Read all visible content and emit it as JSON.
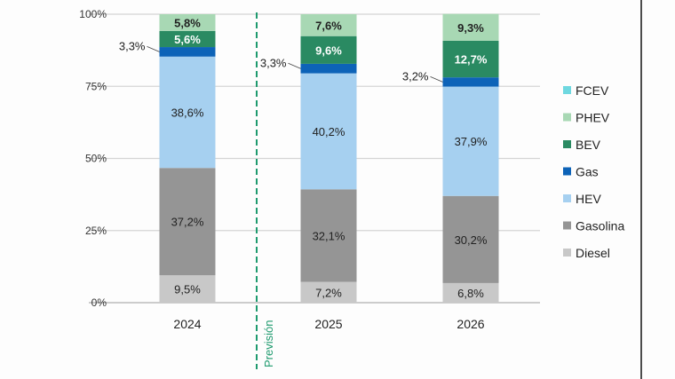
{
  "chart_data": {
    "type": "bar",
    "stacked": true,
    "categories": [
      "2024",
      "2025",
      "2026"
    ],
    "ylim": [
      0,
      100
    ],
    "yticks": [
      "0%",
      "25%",
      "50%",
      "75%",
      "100%"
    ],
    "grid": true,
    "legend_position": "right",
    "annotation": "Previsión",
    "series": [
      {
        "name": "Diesel",
        "color": "#c8c8c8",
        "values": [
          9.5,
          7.2,
          6.8
        ],
        "labels": [
          "9,5%",
          "7,2%",
          "6,8%"
        ]
      },
      {
        "name": "Gasolina",
        "color": "#959595",
        "values": [
          37.2,
          32.1,
          30.2
        ],
        "labels": [
          "37,2%",
          "32,1%",
          "30,2%"
        ]
      },
      {
        "name": "HEV",
        "color": "#a6d0f0",
        "values": [
          38.6,
          40.2,
          37.9
        ],
        "labels": [
          "38,6%",
          "40,2%",
          "37,9%"
        ]
      },
      {
        "name": "Gas",
        "color": "#0d63b8",
        "values": [
          3.3,
          3.3,
          3.2
        ],
        "labels": [
          "3,3%",
          "3,3%",
          "3,2%"
        ]
      },
      {
        "name": "BEV",
        "color": "#2a8a62",
        "values": [
          5.6,
          9.6,
          12.7
        ],
        "labels": [
          "5,6%",
          "9,6%",
          "12,7%"
        ]
      },
      {
        "name": "PHEV",
        "color": "#a8d8b4",
        "values": [
          5.8,
          7.6,
          9.3
        ],
        "labels": [
          "5,8%",
          "7,6%",
          "9,3%"
        ]
      },
      {
        "name": "FCEV",
        "color": "#6fd8e0",
        "values": [
          0,
          0,
          0
        ],
        "labels": [
          "",
          "",
          ""
        ]
      }
    ]
  }
}
